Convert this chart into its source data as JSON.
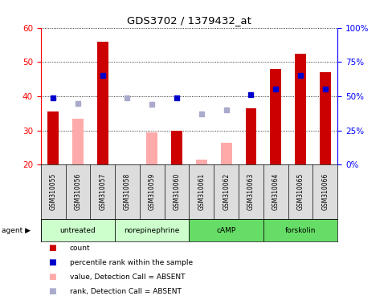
{
  "title": "GDS3702 / 1379432_at",
  "samples": [
    "GSM310055",
    "GSM310056",
    "GSM310057",
    "GSM310058",
    "GSM310059",
    "GSM310060",
    "GSM310061",
    "GSM310062",
    "GSM310063",
    "GSM310064",
    "GSM310065",
    "GSM310066"
  ],
  "count_present": [
    35.5,
    null,
    56.0,
    null,
    null,
    30.0,
    null,
    null,
    36.5,
    48.0,
    52.5,
    47.0
  ],
  "count_absent": [
    null,
    33.5,
    null,
    null,
    29.5,
    null,
    21.5,
    26.5,
    null,
    null,
    null,
    null
  ],
  "rank_present_pct": [
    49,
    null,
    65,
    null,
    null,
    49,
    null,
    null,
    51,
    55,
    65,
    55
  ],
  "rank_absent_pct": [
    null,
    45,
    null,
    49,
    44,
    null,
    37,
    40,
    null,
    null,
    null,
    null
  ],
  "agents": [
    {
      "label": "untreated",
      "start": 0,
      "end": 3,
      "color": "#ccffcc"
    },
    {
      "label": "norepinephrine",
      "start": 3,
      "end": 6,
      "color": "#ccffcc"
    },
    {
      "label": "cAMP",
      "start": 6,
      "end": 9,
      "color": "#66dd66"
    },
    {
      "label": "forskolin",
      "start": 9,
      "end": 12,
      "color": "#66dd66"
    }
  ],
  "ylim_left": [
    20,
    60
  ],
  "ylim_right": [
    0,
    100
  ],
  "yticks_left": [
    20,
    30,
    40,
    50,
    60
  ],
  "yticks_right": [
    0,
    25,
    50,
    75,
    100
  ],
  "ytick_labels_right": [
    "0%",
    "25%",
    "50%",
    "75%",
    "100%"
  ],
  "color_present_bar": "#cc0000",
  "color_absent_bar": "#ffaaaa",
  "color_present_dot": "#0000cc",
  "color_absent_dot": "#aaaacc"
}
